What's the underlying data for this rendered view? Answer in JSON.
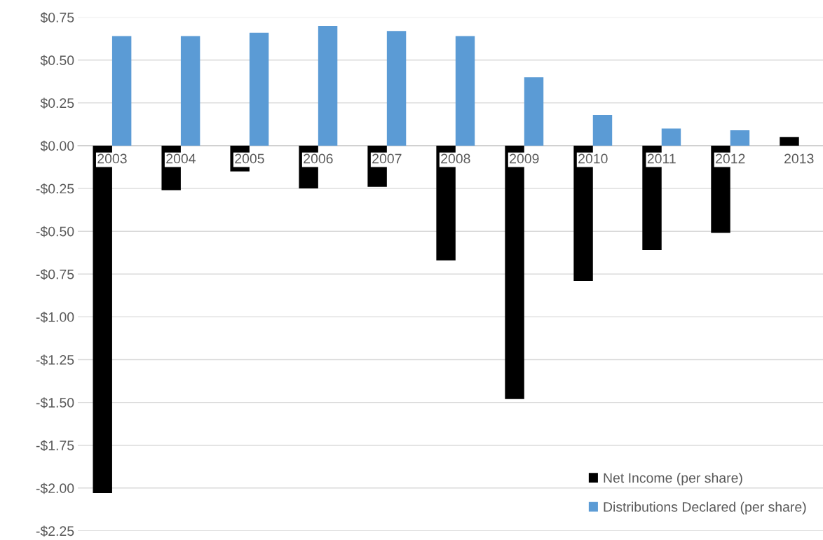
{
  "chart_data": {
    "type": "bar",
    "categories": [
      "2003",
      "2004",
      "2005",
      "2006",
      "2007",
      "2008",
      "2009",
      "2010",
      "2011",
      "2012",
      "2013"
    ],
    "series": [
      {
        "name": "Net Income (per share)",
        "color": "#000000",
        "values": [
          -2.03,
          -0.26,
          -0.15,
          -0.25,
          -0.24,
          -0.67,
          -1.48,
          -0.79,
          -0.61,
          -0.51,
          0.05
        ]
      },
      {
        "name": "Distributions Declared (per share)",
        "color": "#5b9bd5",
        "values": [
          0.64,
          0.64,
          0.66,
          0.7,
          0.67,
          0.64,
          0.4,
          0.18,
          0.1,
          0.09,
          null
        ]
      }
    ],
    "ylim": [
      -2.25,
      0.75
    ],
    "yticks": [
      {
        "value": 0.75,
        "label": "$0.75"
      },
      {
        "value": 0.5,
        "label": "$0.50"
      },
      {
        "value": 0.25,
        "label": "$0.25"
      },
      {
        "value": 0,
        "label": "$0.00"
      },
      {
        "value": -0.25,
        "label": "-$0.25"
      },
      {
        "value": -0.5,
        "label": "-$0.50"
      },
      {
        "value": -0.75,
        "label": "-$0.75"
      },
      {
        "value": -1,
        "label": "-$1.00"
      },
      {
        "value": -1.25,
        "label": "-$1.25"
      },
      {
        "value": -1.5,
        "label": "-$1.50"
      },
      {
        "value": -1.75,
        "label": "-$1.75"
      },
      {
        "value": -2,
        "label": "-$2.00"
      },
      {
        "value": -2.25,
        "label": "-$2.25"
      }
    ],
    "grid": "y",
    "legend": "bottom right"
  }
}
